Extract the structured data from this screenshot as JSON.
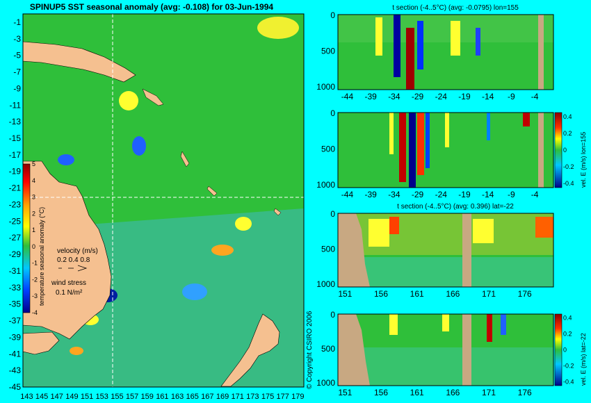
{
  "map": {
    "title": "SPINUP5 SST seasonal anomaly (avg: -0.108) for 03-Jun-1994",
    "x_ticks": [
      "143",
      "145",
      "147",
      "149",
      "151",
      "153",
      "155",
      "157",
      "159",
      "161",
      "163",
      "165",
      "167",
      "169",
      "171",
      "173",
      "175",
      "177",
      "179"
    ],
    "y_ticks": [
      "-1",
      "-3",
      "-5",
      "-7",
      "-9",
      "-11",
      "-13",
      "-15",
      "-17",
      "-19",
      "-21",
      "-23",
      "-25",
      "-27",
      "-29",
      "-31",
      "-33",
      "-35",
      "-37",
      "-39",
      "-41",
      "-43",
      "-45"
    ],
    "colorbar_label": "temperature seasonal anomaly (°C)",
    "colorbar_ticks": [
      "5",
      "4",
      "3",
      "2",
      "1",
      "0",
      "-1",
      "-2",
      "-3",
      "-4"
    ],
    "velocity_legend": "velocity (m/s)",
    "velocity_scale": "0.2 0.4 0.8",
    "wind_legend": "wind stress",
    "wind_scale": "0.1 N/m²",
    "copyright": "© Copyright CSIRO 2006"
  },
  "colors": {
    "background": "#00ffff",
    "land": "#c8a882",
    "sea": "#2fbf3a"
  },
  "panels": [
    {
      "title": "t section (-4..5°C) (avg: -0.0795) lon=155",
      "x_ticks": [
        "-44",
        "-39",
        "-34",
        "-29",
        "-24",
        "-19",
        "-14",
        "-9",
        "-4"
      ],
      "y_ticks": [
        "0",
        "500",
        "1000"
      ]
    },
    {
      "title": "",
      "x_ticks": [
        "-44",
        "-39",
        "-34",
        "-29",
        "-24",
        "-19",
        "-14",
        "-9",
        "-4"
      ],
      "y_ticks": [
        "0",
        "500",
        "1000"
      ],
      "colorbar_label": "vel. E (m/s) lon=155",
      "colorbar_ticks": [
        "0.4",
        "0.2",
        "0",
        "-0.2",
        "-0.4"
      ]
    },
    {
      "title": "t section (-4..5°C) (avg: 0.396) lat=-22",
      "x_ticks": [
        "151",
        "156",
        "161",
        "166",
        "171",
        "176"
      ],
      "y_ticks": [
        "0",
        "500",
        "1000"
      ]
    },
    {
      "title": "",
      "x_ticks": [
        "151",
        "156",
        "161",
        "166",
        "171",
        "176"
      ],
      "y_ticks": [
        "0",
        "500",
        "1000"
      ],
      "colorbar_label": "vel. E (m/s) lat=-22",
      "colorbar_ticks": [
        "0.4",
        "0.2",
        "0",
        "-0.2",
        "-0.4"
      ]
    }
  ],
  "chart_data": [
    {
      "type": "heatmap",
      "title": "SPINUP5 SST seasonal anomaly (avg: -0.108) for 03-Jun-1994",
      "xlim": [
        143,
        180
      ],
      "ylim": [
        -45,
        0
      ],
      "zlim": [
        -4,
        5
      ],
      "zlabel": "temperature seasonal anomaly (°C)"
    },
    {
      "type": "heatmap",
      "title": "t section (-4..5°C) (avg: -0.0795) lon=155",
      "xlim": [
        -46,
        0
      ],
      "ylim": [
        1050,
        0
      ],
      "zlim": [
        -4,
        5
      ]
    },
    {
      "type": "heatmap",
      "xlim": [
        -46,
        0
      ],
      "ylim": [
        1050,
        0
      ],
      "zlim": [
        -0.4,
        0.4
      ],
      "zlabel": "vel. E (m/s) lon=155"
    },
    {
      "type": "heatmap",
      "title": "t section (-4..5°C) (avg: 0.396) lat=-22",
      "xlim": [
        150,
        180
      ],
      "ylim": [
        1050,
        0
      ],
      "zlim": [
        -4,
        5
      ]
    },
    {
      "type": "heatmap",
      "xlim": [
        150,
        180
      ],
      "ylim": [
        1050,
        0
      ],
      "zlim": [
        -0.4,
        0.4
      ],
      "zlabel": "vel. E (m/s) lat=-22"
    }
  ]
}
